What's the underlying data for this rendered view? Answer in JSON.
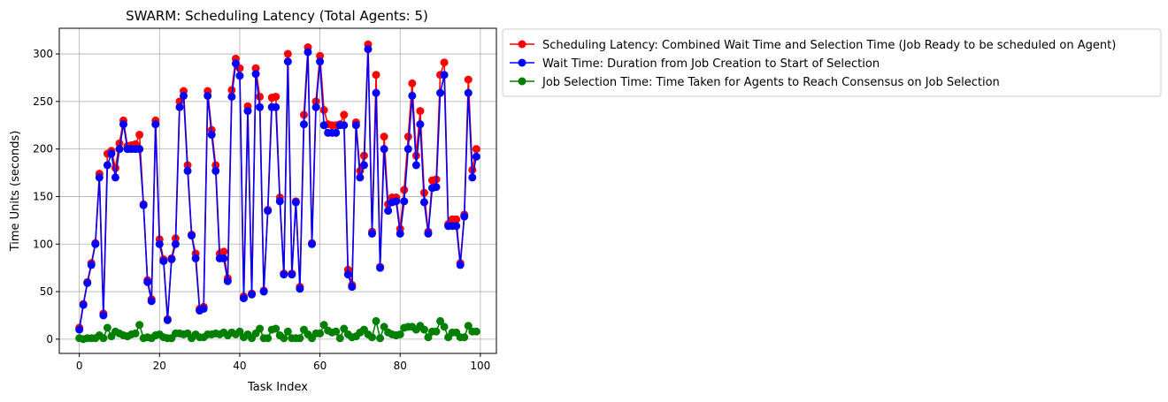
{
  "chart_data": {
    "type": "line",
    "title": "SWARM: Scheduling Latency (Total Agents: 5)",
    "xlabel": "Task Index",
    "ylabel": "Time Units (seconds)",
    "xlim": [
      -5,
      104
    ],
    "ylim": [
      -15,
      327
    ],
    "xticks": [
      0,
      20,
      40,
      60,
      80,
      100
    ],
    "yticks": [
      0,
      50,
      100,
      150,
      200,
      250,
      300
    ],
    "grid": true,
    "legend_position": "outside-right-top",
    "series": [
      {
        "name": "Scheduling Latency: Combined Wait Time and Selection Time (Job Ready to be scheduled on Agent)",
        "color": "#ff0000",
        "values": [
          12,
          37,
          60,
          80,
          101,
          174,
          27,
          195,
          198,
          180,
          206,
          230,
          203,
          204,
          205,
          215,
          142,
          62,
          42,
          230,
          105,
          84,
          21,
          85,
          106,
          250,
          261,
          183,
          110,
          90,
          32,
          34,
          261,
          220,
          183,
          90,
          92,
          64,
          262,
          295,
          285,
          45,
          245,
          48,
          285,
          255,
          51,
          136,
          254,
          255,
          149,
          69,
          300,
          69,
          145,
          55,
          236,
          307,
          101,
          250,
          298,
          241,
          226,
          225,
          225,
          226,
          236,
          73,
          57,
          228,
          177,
          193,
          310,
          113,
          278,
          76,
          213,
          142,
          149,
          149,
          116,
          157,
          213,
          269,
          193,
          240,
          154,
          113,
          167,
          168,
          278,
          291,
          121,
          126,
          126,
          80,
          131,
          273,
          178,
          200
        ]
      },
      {
        "name": "Wait Time: Duration from Job Creation to Start of Selection",
        "color": "#0000ff",
        "values": [
          10,
          36,
          59,
          78,
          100,
          170,
          25,
          183,
          195,
          170,
          200,
          226,
          200,
          200,
          200,
          200,
          141,
          60,
          40,
          226,
          100,
          82,
          20,
          84,
          100,
          244,
          256,
          177,
          109,
          85,
          30,
          32,
          256,
          215,
          177,
          85,
          85,
          61,
          255,
          290,
          277,
          43,
          240,
          47,
          279,
          244,
          50,
          135,
          244,
          244,
          145,
          68,
          292,
          68,
          144,
          53,
          226,
          302,
          100,
          244,
          292,
          225,
          217,
          217,
          217,
          225,
          225,
          68,
          55,
          225,
          170,
          183,
          305,
          111,
          259,
          75,
          200,
          135,
          144,
          145,
          111,
          145,
          200,
          256,
          183,
          226,
          144,
          111,
          159,
          160,
          259,
          278,
          119,
          119,
          119,
          78,
          129,
          259,
          170,
          192
        ]
      },
      {
        "name": "Job Selection Time: Time Taken for Agents to Reach Consensus on Job Selection",
        "color": "#008000",
        "values": [
          1,
          0,
          1,
          1,
          1,
          4,
          1,
          12,
          3,
          8,
          6,
          4,
          3,
          5,
          6,
          15,
          1,
          2,
          1,
          4,
          5,
          2,
          1,
          1,
          6,
          6,
          5,
          6,
          1,
          5,
          2,
          2,
          5,
          5,
          6,
          5,
          7,
          4,
          7,
          5,
          8,
          2,
          5,
          1,
          6,
          11,
          1,
          1,
          10,
          11,
          4,
          1,
          8,
          1,
          1,
          1,
          10,
          5,
          1,
          6,
          6,
          15,
          9,
          7,
          8,
          1,
          11,
          5,
          2,
          3,
          7,
          10,
          5,
          2,
          19,
          1,
          13,
          7,
          5,
          4,
          5,
          12,
          13,
          13,
          10,
          14,
          10,
          2,
          8,
          8,
          19,
          13,
          2,
          7,
          7,
          2,
          2,
          14,
          8,
          8
        ]
      }
    ]
  }
}
